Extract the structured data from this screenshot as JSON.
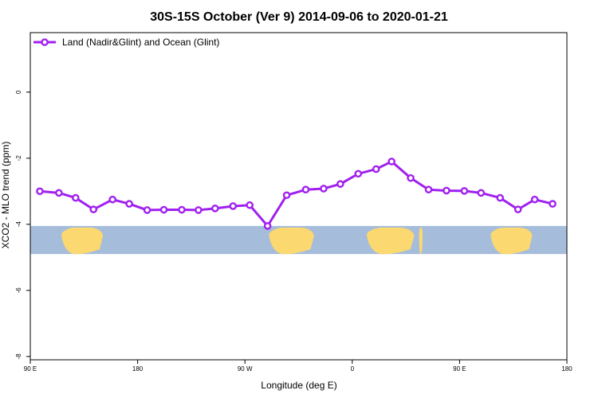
{
  "chart_data": {
    "type": "line",
    "title": "30S-15S October (Ver 9)   2014-09-06 to 2020-01-21",
    "xlabel": "Longitude (deg E)",
    "ylabel": "XCO2 - MLO trend (ppm)",
    "xlim": [
      90,
      540
    ],
    "ylim": [
      -8.1,
      1.8
    ],
    "x_ticks": [
      {
        "value": 90,
        "label": "90 E"
      },
      {
        "value": 180,
        "label": "180"
      },
      {
        "value": 270,
        "label": "90 W"
      },
      {
        "value": 360,
        "label": "0"
      },
      {
        "value": 450,
        "label": "90 E"
      },
      {
        "value": 540,
        "label": "180"
      }
    ],
    "y_ticks": [
      {
        "value": 0,
        "label": "0"
      },
      {
        "value": -2,
        "label": "-2"
      },
      {
        "value": -4,
        "label": "-4"
      },
      {
        "value": -6,
        "label": "-6"
      },
      {
        "value": -8,
        "label": "-8"
      }
    ],
    "legend": {
      "position": "top-left",
      "entries": [
        "Land (Nadir&Glint) and Ocean (Glint)"
      ]
    },
    "grid": false,
    "series": [
      {
        "name": "Land (Nadir&Glint) and Ocean (Glint)",
        "color": "#a020f0",
        "x": [
          98,
          114,
          128,
          143,
          159,
          173,
          188,
          202,
          217,
          231,
          245,
          260,
          274,
          289,
          305,
          321,
          336,
          350,
          365,
          380,
          393,
          409,
          424,
          439,
          454,
          468,
          484,
          499,
          513,
          528
        ],
        "y": [
          -3.0,
          -3.05,
          -3.2,
          -3.55,
          -3.25,
          -3.38,
          -3.57,
          -3.56,
          -3.56,
          -3.57,
          -3.52,
          -3.45,
          -3.42,
          -4.05,
          -3.12,
          -2.95,
          -2.92,
          -2.78,
          -2.47,
          -2.33,
          -2.1,
          -2.6,
          -2.95,
          -2.98,
          -2.99,
          -3.05,
          -3.2,
          -3.55,
          -3.25,
          -3.38
        ]
      }
    ],
    "map_strip": {
      "y_range": [
        -4.05,
        -4.9
      ],
      "ocean_color": "#a5bcdb",
      "land_color": "#fbd870",
      "land_segments": [
        {
          "x": [
            116,
            151
          ],
          "label": "Australia"
        },
        {
          "x": [
            290,
            328
          ],
          "label": "South America"
        },
        {
          "x": [
            372,
            412
          ],
          "label": "Africa"
        },
        {
          "x": [
            416,
            419
          ],
          "label": "Madagascar"
        },
        {
          "x": [
            476,
            511
          ],
          "label": "Australia"
        }
      ]
    }
  }
}
